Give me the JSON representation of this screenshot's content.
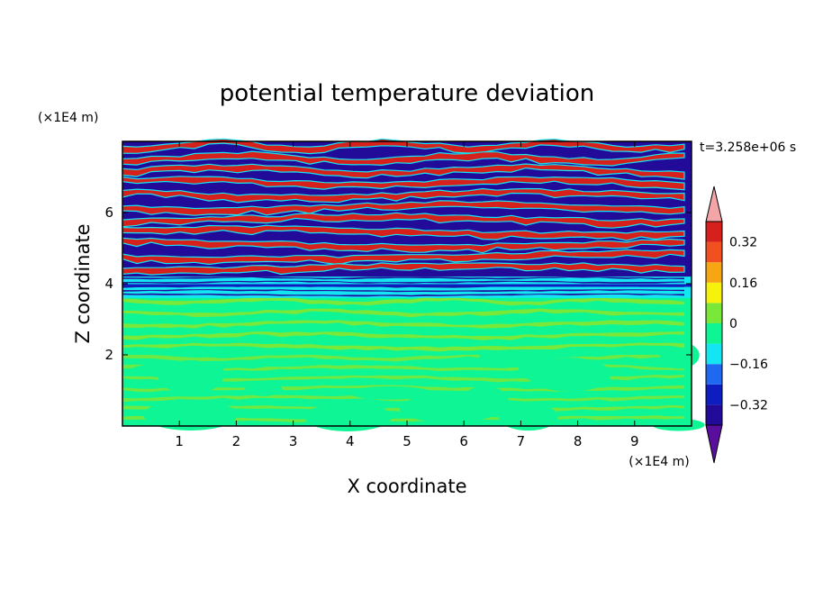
{
  "chart_data": {
    "type": "heatmap",
    "title": "potential temperature deviation",
    "time_label": "t=3.258e+06 s",
    "xlabel": "X coordinate",
    "ylabel": "Z coordinate",
    "x_unit": "(×1E4 m)",
    "y_unit": "(×1E4 m)",
    "xlim": [
      0,
      10
    ],
    "ylim": [
      0,
      8
    ],
    "x_ticks": [
      "1",
      "2",
      "3",
      "4",
      "5",
      "6",
      "7",
      "8",
      "9"
    ],
    "y_ticks": [
      "2",
      "4",
      "6"
    ],
    "colorbar": {
      "levels": [
        -0.4,
        -0.32,
        -0.24,
        -0.16,
        -0.08,
        0,
        0.08,
        0.16,
        0.24,
        0.32,
        0.4
      ],
      "labels": [
        "0.32",
        "0.16",
        "0",
        "−0.16",
        "−0.32"
      ],
      "label_values": [
        0.32,
        0.16,
        0,
        -0.16,
        -0.32
      ],
      "colors": [
        "#5a0e9e",
        "#230b9a",
        "#0d1dc0",
        "#1e69f0",
        "#13e6f2",
        "#0ef596",
        "#7ae838",
        "#f6f20c",
        "#f6a613",
        "#f15020",
        "#d6201c",
        "#f4a5a7"
      ]
    },
    "bands": [
      {
        "z": [
          0.0,
          2.0
        ],
        "base": -0.04,
        "mix": 0.06,
        "accent": "#7ae838"
      },
      {
        "z": [
          2.0,
          3.6
        ],
        "base": -0.04,
        "mix": 0.0,
        "accent": "#f6f20c"
      },
      {
        "z": [
          3.6,
          4.2
        ],
        "base": -0.14,
        "mix": -0.36,
        "accent": "#0d1dc0"
      },
      {
        "z": [
          4.2,
          8.0
        ],
        "base": -0.38,
        "mix": 0.38,
        "accent": "#13e6f2"
      }
    ]
  }
}
